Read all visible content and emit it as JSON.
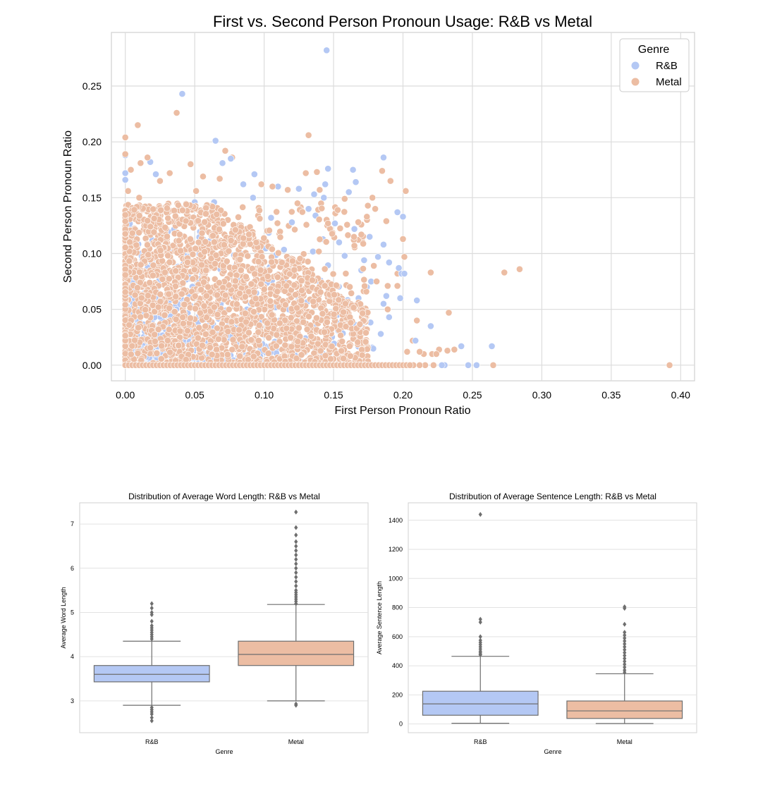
{
  "colors": {
    "rnb": "#b4c8f4",
    "rnb_edge": "#7f7f7f",
    "metal": "#ecbda3",
    "grid": "#dcdcdc",
    "frame": "#d0d0d0",
    "box_line": "#6e6e6e"
  },
  "chart_data": [
    {
      "type": "scatter",
      "title": "First vs. Second Person Pronoun Usage: R&B vs Metal",
      "xlabel": "First Person Pronoun Ratio",
      "ylabel": "Second Person Pronoun Ratio",
      "xlim": [
        -0.01,
        0.41
      ],
      "ylim": [
        -0.014,
        0.298
      ],
      "xticks": [
        0.0,
        0.05,
        0.1,
        0.15,
        0.2,
        0.25,
        0.3,
        0.35,
        0.4
      ],
      "xtick_labels": [
        "0.00",
        "0.05",
        "0.10",
        "0.15",
        "0.20",
        "0.25",
        "0.30",
        "0.35",
        "0.40"
      ],
      "yticks": [
        0.0,
        0.05,
        0.1,
        0.15,
        0.2,
        0.25
      ],
      "ytick_labels": [
        "0.00",
        "0.05",
        "0.10",
        "0.15",
        "0.20",
        "0.25"
      ],
      "grid": true,
      "legend": {
        "title": "Genre",
        "placement": "top-right"
      },
      "series": [
        {
          "name": "R&B",
          "color": "#b4c8f4",
          "points": [
            [
              0.145,
              0.282
            ],
            [
              0.041,
              0.243
            ],
            [
              0.065,
              0.201
            ],
            [
              0.186,
              0.186
            ],
            [
              0.164,
              0.175
            ],
            [
              0.146,
              0.176
            ],
            [
              0.07,
              0.181
            ],
            [
              0.076,
              0.185
            ],
            [
              0.093,
              0.171
            ],
            [
              0.136,
              0.153
            ],
            [
              0.144,
              0.162
            ],
            [
              0.161,
              0.155
            ],
            [
              0.166,
              0.164
            ],
            [
              0.143,
              0.15
            ],
            [
              0.196,
              0.137
            ],
            [
              0.2,
              0.133
            ],
            [
              0.165,
              0.122
            ],
            [
              0.151,
              0.127
            ],
            [
              0.176,
              0.115
            ],
            [
              0.182,
              0.097
            ],
            [
              0.186,
              0.108
            ],
            [
              0.19,
              0.092
            ],
            [
              0.197,
              0.087
            ],
            [
              0.199,
              0.082
            ],
            [
              0.201,
              0.082
            ],
            [
              0.188,
              0.062
            ],
            [
              0.198,
              0.06
            ],
            [
              0.21,
              0.058
            ],
            [
              0.186,
              0.055
            ],
            [
              0.19,
              0.043
            ],
            [
              0.184,
              0.028
            ],
            [
              0.22,
              0.035
            ],
            [
              0.209,
              0.022
            ],
            [
              0.242,
              0.017
            ],
            [
              0.264,
              0.017
            ],
            [
              0.247,
              0.0
            ],
            [
              0.253,
              0.0
            ],
            [
              0.23,
              0.0
            ],
            [
              0.228,
              0.0
            ],
            [
              0.12,
              0.128
            ],
            [
              0.105,
              0.132
            ],
            [
              0.132,
              0.14
            ],
            [
              0.158,
              0.098
            ],
            [
              0.17,
              0.085
            ],
            [
              0.174,
              0.07
            ],
            [
              0.168,
              0.06
            ],
            [
              0.092,
              0.15
            ],
            [
              0.11,
              0.16
            ],
            [
              0.085,
              0.162
            ],
            [
              0.125,
              0.158
            ],
            [
              0.137,
              0.134
            ],
            [
              0.172,
              0.094
            ],
            [
              0.154,
              0.11
            ],
            [
              0.064,
              0.146
            ],
            [
              0.05,
              0.146
            ],
            [
              0.018,
              0.182
            ],
            [
              0.022,
              0.171
            ],
            [
              0.0,
              0.188
            ],
            [
              0.0,
              0.172
            ],
            [
              0.0,
              0.166
            ]
          ]
        },
        {
          "name": "Metal",
          "color": "#ecbda3",
          "points": [
            [
              0.392,
              0.0
            ],
            [
              0.284,
              0.086
            ],
            [
              0.273,
              0.083
            ],
            [
              0.265,
              0.0
            ],
            [
              0.233,
              0.047
            ],
            [
              0.22,
              0.083
            ],
            [
              0.226,
              0.014
            ],
            [
              0.237,
              0.014
            ],
            [
              0.232,
              0.013
            ],
            [
              0.221,
              0.01
            ],
            [
              0.215,
              0.01
            ],
            [
              0.202,
              0.156
            ],
            [
              0.185,
              0.174
            ],
            [
              0.191,
              0.165
            ],
            [
              0.132,
              0.206
            ],
            [
              0.037,
              0.226
            ],
            [
              0.009,
              0.215
            ],
            [
              0.0,
              0.204
            ],
            [
              0.072,
              0.192
            ],
            [
              0.077,
              0.186
            ],
            [
              0.13,
              0.172
            ],
            [
              0.138,
              0.173
            ],
            [
              0.106,
              0.16
            ],
            [
              0.117,
              0.157
            ],
            [
              0.188,
              0.129
            ],
            [
              0.2,
              0.113
            ],
            [
              0.201,
              0.097
            ],
            [
              0.196,
              0.082
            ],
            [
              0.196,
              0.071
            ],
            [
              0.189,
              0.071
            ],
            [
              0.181,
              0.075
            ],
            [
              0.21,
              0.04
            ],
            [
              0.207,
              0.022
            ],
            [
              0.203,
              0.012
            ],
            [
              0.212,
              0.012
            ],
            [
              0.224,
              0.01
            ],
            [
              0.205,
              0.0
            ],
            [
              0.216,
              0.0
            ],
            [
              0.222,
              0.0
            ],
            [
              0.212,
              0.0
            ],
            [
              0.189,
              0.05
            ],
            [
              0.179,
              0.089
            ],
            [
              0.174,
              0.133
            ],
            [
              0.18,
              0.14
            ],
            [
              0.178,
              0.15
            ],
            [
              0.14,
              0.157
            ],
            [
              0.158,
              0.149
            ],
            [
              0.153,
              0.139
            ],
            [
              0.17,
              0.117
            ],
            [
              0.165,
              0.107
            ],
            [
              0.146,
              0.127
            ],
            [
              0.124,
              0.145
            ],
            [
              0.098,
              0.162
            ],
            [
              0.068,
              0.167
            ],
            [
              0.056,
              0.169
            ],
            [
              0.047,
              0.18
            ],
            [
              0.032,
              0.172
            ],
            [
              0.025,
              0.165
            ],
            [
              0.016,
              0.186
            ],
            [
              0.011,
              0.181
            ],
            [
              0.004,
              0.175
            ],
            [
              0.0,
              0.189
            ],
            [
              0.002,
              0.156
            ],
            [
              0.01,
              0.15
            ],
            [
              0.051,
              0.156
            ]
          ],
          "dense_region": {
            "x_range": [
              0.0,
              0.175
            ],
            "y_range": [
              0.0,
              0.145
            ]
          }
        }
      ]
    },
    {
      "type": "box",
      "title": "Distribution of Average Word Length: R&B vs Metal",
      "xlabel": "Genre",
      "ylabel": "Average Word Length",
      "ylim": [
        2.28,
        7.48
      ],
      "yticks": [
        3,
        4,
        5,
        6,
        7
      ],
      "ytick_labels": [
        "3",
        "4",
        "5",
        "6",
        "7"
      ],
      "categories": [
        "R&B",
        "Metal"
      ],
      "grid": true,
      "boxes": [
        {
          "category": "R&B",
          "color": "#b4c8f4",
          "whisker_low": 2.9,
          "q1": 3.43,
          "median": 3.6,
          "q3": 3.8,
          "whisker_high": 4.35,
          "outliers": [
            5.2,
            5.1,
            5.0,
            4.95,
            4.8,
            4.7,
            4.65,
            4.6,
            4.55,
            4.5,
            4.45,
            4.4,
            2.85,
            2.8,
            2.75,
            2.7,
            2.62,
            2.55
          ]
        },
        {
          "category": "Metal",
          "color": "#ecbda3",
          "whisker_low": 3.0,
          "q1": 3.8,
          "median": 4.05,
          "q3": 4.35,
          "whisker_high": 5.18,
          "outliers": [
            7.27,
            6.92,
            6.75,
            6.6,
            6.5,
            6.4,
            6.3,
            6.2,
            6.1,
            6.0,
            5.9,
            5.8,
            5.7,
            5.6,
            5.5,
            5.45,
            5.4,
            5.35,
            5.3,
            5.25,
            5.2,
            2.93,
            2.9
          ]
        }
      ]
    },
    {
      "type": "box",
      "title": "Distribution of Average Sentence Length: R&B vs Metal",
      "xlabel": "Genre",
      "ylabel": "Average Sentence Length",
      "ylim": [
        -60,
        1520
      ],
      "yticks": [
        0,
        200,
        400,
        600,
        800,
        1000,
        1200,
        1400
      ],
      "ytick_labels": [
        "0",
        "200",
        "400",
        "600",
        "800",
        "1000",
        "1200",
        "1400"
      ],
      "categories": [
        "R&B",
        "Metal"
      ],
      "grid": true,
      "boxes": [
        {
          "category": "R&B",
          "color": "#b4c8f4",
          "whisker_low": 5,
          "q1": 60,
          "median": 138,
          "q3": 225,
          "whisker_high": 465,
          "outliers": [
            1440,
            720,
            700,
            600,
            575,
            560,
            545,
            530,
            515,
            500,
            490,
            480,
            475
          ]
        },
        {
          "category": "Metal",
          "color": "#ecbda3",
          "whisker_low": 3,
          "q1": 38,
          "median": 90,
          "q3": 158,
          "whisker_high": 345,
          "outliers": [
            805,
            795,
            685,
            630,
            610,
            590,
            570,
            550,
            530,
            510,
            490,
            470,
            450,
            430,
            410,
            390,
            370,
            355
          ]
        }
      ]
    }
  ]
}
